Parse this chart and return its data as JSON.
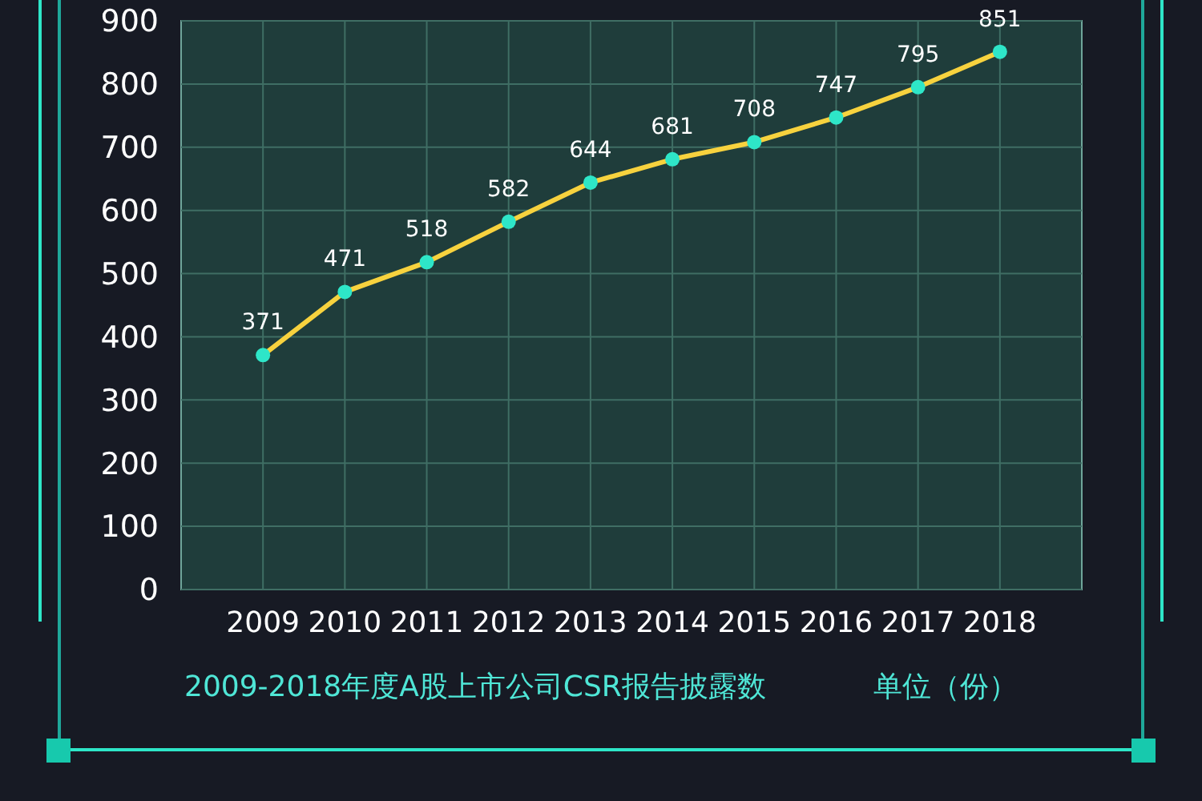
{
  "chart_data": {
    "type": "line",
    "title": "2009-2018年度A股上市公司CSR报告披露数",
    "annotations": [
      "单位（份）"
    ],
    "categories": [
      "2009",
      "2010",
      "2011",
      "2012",
      "2013",
      "2014",
      "2015",
      "2016",
      "2017",
      "2018"
    ],
    "series": [
      {
        "color": "#f7d23e",
        "values": [
          371,
          471,
          518,
          582,
          644,
          681,
          708,
          747,
          795,
          851
        ]
      }
    ],
    "ylim": [
      0,
      900
    ],
    "yticks": [
      0,
      100,
      200,
      300,
      400,
      500,
      600,
      700,
      800,
      900
    ],
    "grid": true,
    "marker": "circle",
    "line_style": "solid",
    "data_labels": true
  }
}
